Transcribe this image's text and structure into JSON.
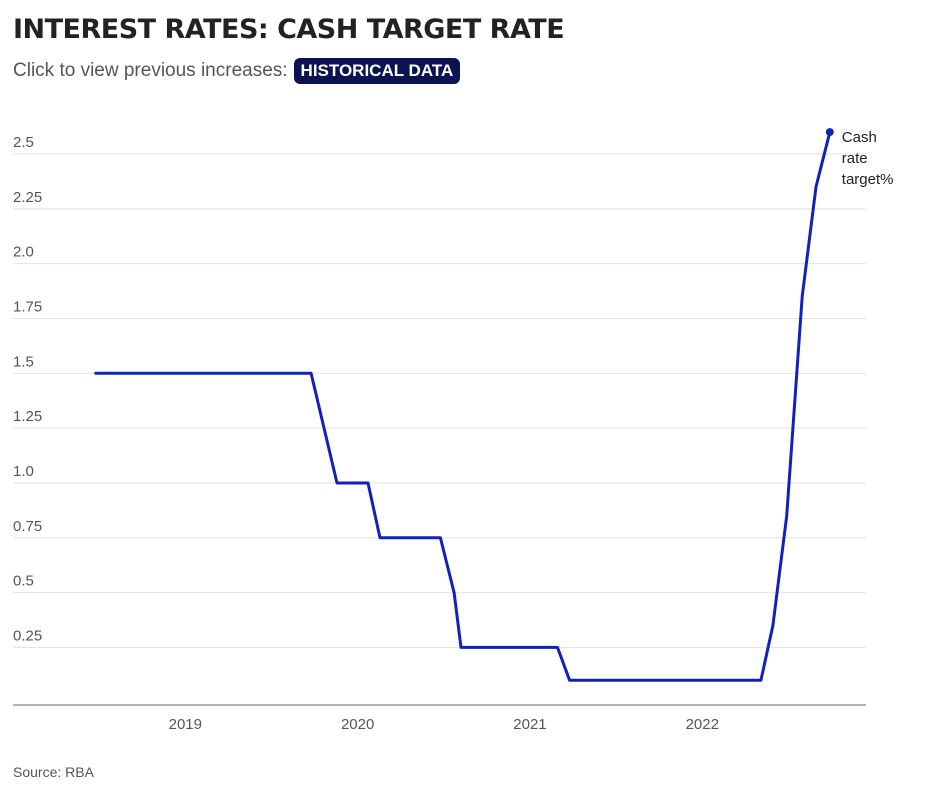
{
  "header": {
    "title": "INTEREST RATES: CASH TARGET RATE",
    "subtitle": "Click to view previous increases:",
    "button_label": "HISTORICAL DATA"
  },
  "colors": {
    "line": "#1122bb",
    "button_bg": "#0b1453",
    "grid": "#e2e2e2",
    "axis": "#666666"
  },
  "chart_data": {
    "type": "line",
    "title": "INTEREST RATES: CASH TARGET RATE",
    "xlabel": "",
    "ylabel": "",
    "xlim": [
      2018.0,
      2022.95
    ],
    "ylim": [
      -0.0125,
      2.5
    ],
    "grid": true,
    "x_ticks": [
      {
        "value": 2019.0,
        "label": "2019"
      },
      {
        "value": 2020.0,
        "label": "2020"
      },
      {
        "value": 2021.0,
        "label": "2021"
      },
      {
        "value": 2022.0,
        "label": "2022"
      }
    ],
    "y_ticks": [
      {
        "value": 0.25,
        "label": "0.25"
      },
      {
        "value": 0.5,
        "label": "0.5"
      },
      {
        "value": 0.75,
        "label": "0.75"
      },
      {
        "value": 1.0,
        "label": "1.0"
      },
      {
        "value": 1.25,
        "label": "1.25"
      },
      {
        "value": 1.5,
        "label": "1.5"
      },
      {
        "value": 1.75,
        "label": "1.75"
      },
      {
        "value": 2.0,
        "label": "2.0"
      },
      {
        "value": 2.25,
        "label": "2.25"
      },
      {
        "value": 2.5,
        "label": "2.5"
      }
    ],
    "series": [
      {
        "name": "Cash rate target%",
        "label_lines": [
          "Cash",
          "rate",
          "target%"
        ],
        "points": [
          [
            2018.48,
            1.5
          ],
          [
            2019.73,
            1.5
          ],
          [
            2019.88,
            1.0
          ],
          [
            2020.06,
            1.0
          ],
          [
            2020.13,
            0.75
          ],
          [
            2020.48,
            0.75
          ],
          [
            2020.56,
            0.5
          ],
          [
            2020.6,
            0.25
          ],
          [
            2021.16,
            0.25
          ],
          [
            2021.23,
            0.1
          ],
          [
            2022.34,
            0.1
          ],
          [
            2022.41,
            0.35
          ],
          [
            2022.49,
            0.85
          ],
          [
            2022.58,
            1.85
          ],
          [
            2022.66,
            2.35
          ],
          [
            2022.74,
            2.6
          ]
        ]
      }
    ]
  },
  "footer": {
    "source": "Source: RBA"
  }
}
